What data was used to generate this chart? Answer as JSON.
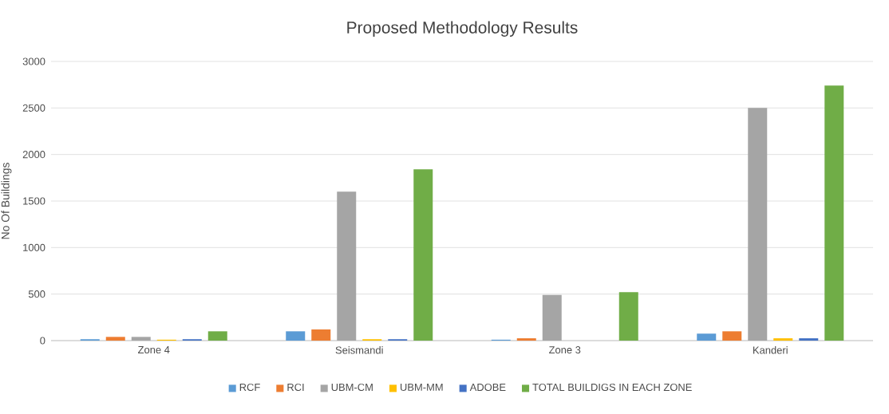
{
  "chart_data": {
    "type": "bar",
    "title": "Proposed Methodology Results",
    "ylabel": "No Of Buildings",
    "categories": [
      "Zone 4",
      "Seismandi",
      "Zone 3",
      "Kanderi"
    ],
    "series": [
      {
        "name": "RCF",
        "color": "#5b9bd5",
        "values": [
          15,
          100,
          10,
          75
        ]
      },
      {
        "name": "RCI",
        "color": "#ed7d31",
        "values": [
          40,
          120,
          25,
          100
        ]
      },
      {
        "name": "UBM-CM",
        "color": "#a5a5a5",
        "values": [
          40,
          1600,
          490,
          2500
        ]
      },
      {
        "name": "UBM-MM",
        "color": "#ffc000",
        "values": [
          10,
          15,
          0,
          25
        ]
      },
      {
        "name": "ADOBE",
        "color": "#4472c4",
        "values": [
          15,
          15,
          0,
          25
        ]
      },
      {
        "name": "TOTAL BUILDIGS IN EACH ZONE",
        "color": "#70ad47",
        "values": [
          100,
          1840,
          520,
          2740
        ]
      }
    ],
    "ylim": [
      0,
      3000
    ],
    "yticks": [
      0,
      500,
      1000,
      1500,
      2000,
      2500,
      3000
    ],
    "grid": "y",
    "legend": "bottom"
  }
}
